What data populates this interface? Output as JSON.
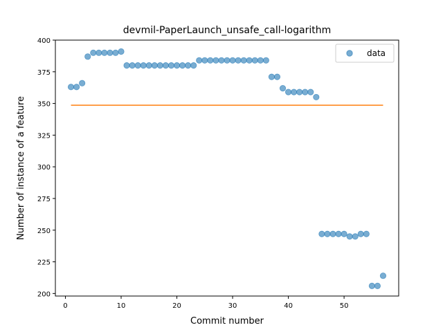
{
  "chart_data": {
    "type": "scatter",
    "title": "devmil-PaperLaunch_unsafe_call-logarithm",
    "xlabel": "Commit number",
    "ylabel": "Number of instance of a feature",
    "xlim": [
      -1.8,
      59.8
    ],
    "ylim": [
      198,
      400
    ],
    "xticks": [
      0,
      10,
      20,
      30,
      40,
      50
    ],
    "yticks": [
      200,
      225,
      250,
      275,
      300,
      325,
      350,
      375,
      400
    ],
    "grid": false,
    "legend": {
      "position": "top-right",
      "entries": [
        "data"
      ]
    },
    "series": [
      {
        "name": "data",
        "kind": "scatter",
        "color": "#1f77b4",
        "x": [
          1,
          2,
          3,
          4,
          5,
          6,
          7,
          8,
          9,
          10,
          11,
          12,
          13,
          14,
          15,
          16,
          17,
          18,
          19,
          20,
          21,
          22,
          23,
          24,
          25,
          26,
          27,
          28,
          29,
          30,
          31,
          32,
          33,
          34,
          35,
          36,
          37,
          38,
          39,
          40,
          41,
          42,
          43,
          44,
          45,
          46,
          47,
          48,
          49,
          50,
          51,
          52,
          53,
          54,
          55,
          56,
          57
        ],
        "y": [
          363,
          363,
          366,
          387,
          390,
          390,
          390,
          390,
          390,
          391,
          380,
          380,
          380,
          380,
          380,
          380,
          380,
          380,
          380,
          380,
          380,
          380,
          380,
          384,
          384,
          384,
          384,
          384,
          384,
          384,
          384,
          384,
          384,
          384,
          384,
          384,
          371,
          371,
          362,
          359,
          359,
          359,
          359,
          359,
          355,
          247,
          247,
          247,
          247,
          247,
          245,
          245,
          247,
          247,
          206,
          206,
          214
        ]
      },
      {
        "kind": "line",
        "color": "#ff7f0e",
        "x": [
          1,
          57
        ],
        "y": [
          348.6,
          348.6
        ]
      }
    ]
  }
}
